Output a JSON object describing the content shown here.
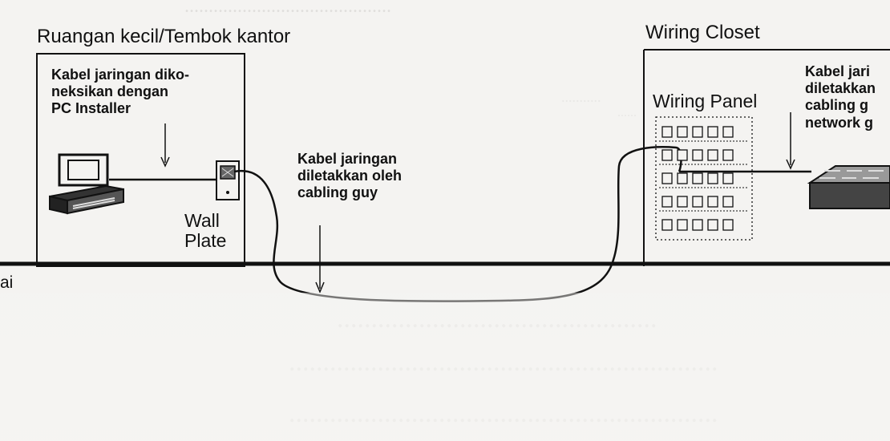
{
  "labels": {
    "room_title": "Ruangan kecil/Tembok kantor",
    "room_note": "Kabel jaringan diko-\nneksikan dengan\nPC Installer",
    "wall_plate": "Wall\nPlate",
    "cable_note": "Kabel jaringan\ndiletakkan oleh\ncabling guy",
    "closet_title": "Wiring Closet",
    "wiring_panel": "Wiring Panel",
    "closet_note": "Kabel jari\ndiletakkan\ncabling g\nnetwork g",
    "floor_fragment": "ai"
  },
  "colors": {
    "ink": "#111111",
    "paper": "#f4f3f1",
    "faint_text": "#d5d4d1"
  }
}
